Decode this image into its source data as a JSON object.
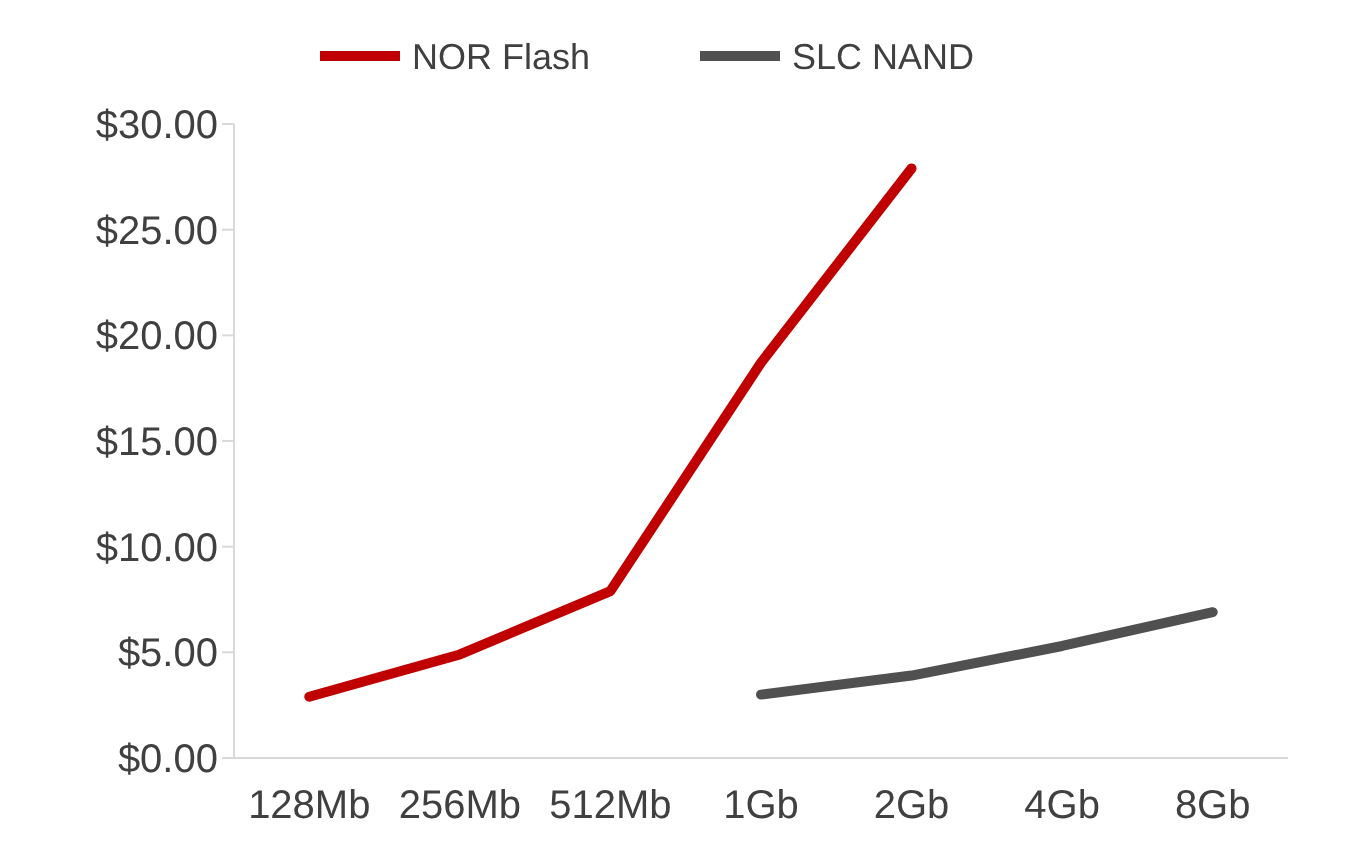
{
  "chart_data": {
    "type": "line",
    "categories": [
      "128Mb",
      "256Mb",
      "512Mb",
      "1Gb",
      "2Gb",
      "4Gb",
      "8Gb"
    ],
    "series": [
      {
        "name": "NOR Flash",
        "color": "#c00000",
        "values": [
          2.9,
          4.9,
          7.9,
          18.7,
          27.9,
          null,
          null
        ]
      },
      {
        "name": "SLC NAND",
        "color": "#505050",
        "values": [
          null,
          null,
          null,
          3.0,
          3.9,
          5.3,
          6.9
        ]
      }
    ],
    "ylim": [
      0,
      30
    ],
    "yticks": [
      {
        "value": 0,
        "label": "$0.00"
      },
      {
        "value": 5,
        "label": "$5.00"
      },
      {
        "value": 10,
        "label": "$10.00"
      },
      {
        "value": 15,
        "label": "$15.00"
      },
      {
        "value": 20,
        "label": "$20.00"
      },
      {
        "value": 25,
        "label": "$25.00"
      },
      {
        "value": 30,
        "label": "$30.00"
      }
    ],
    "grid": false,
    "legend": "top",
    "marker": "none",
    "line_style": "solid"
  }
}
